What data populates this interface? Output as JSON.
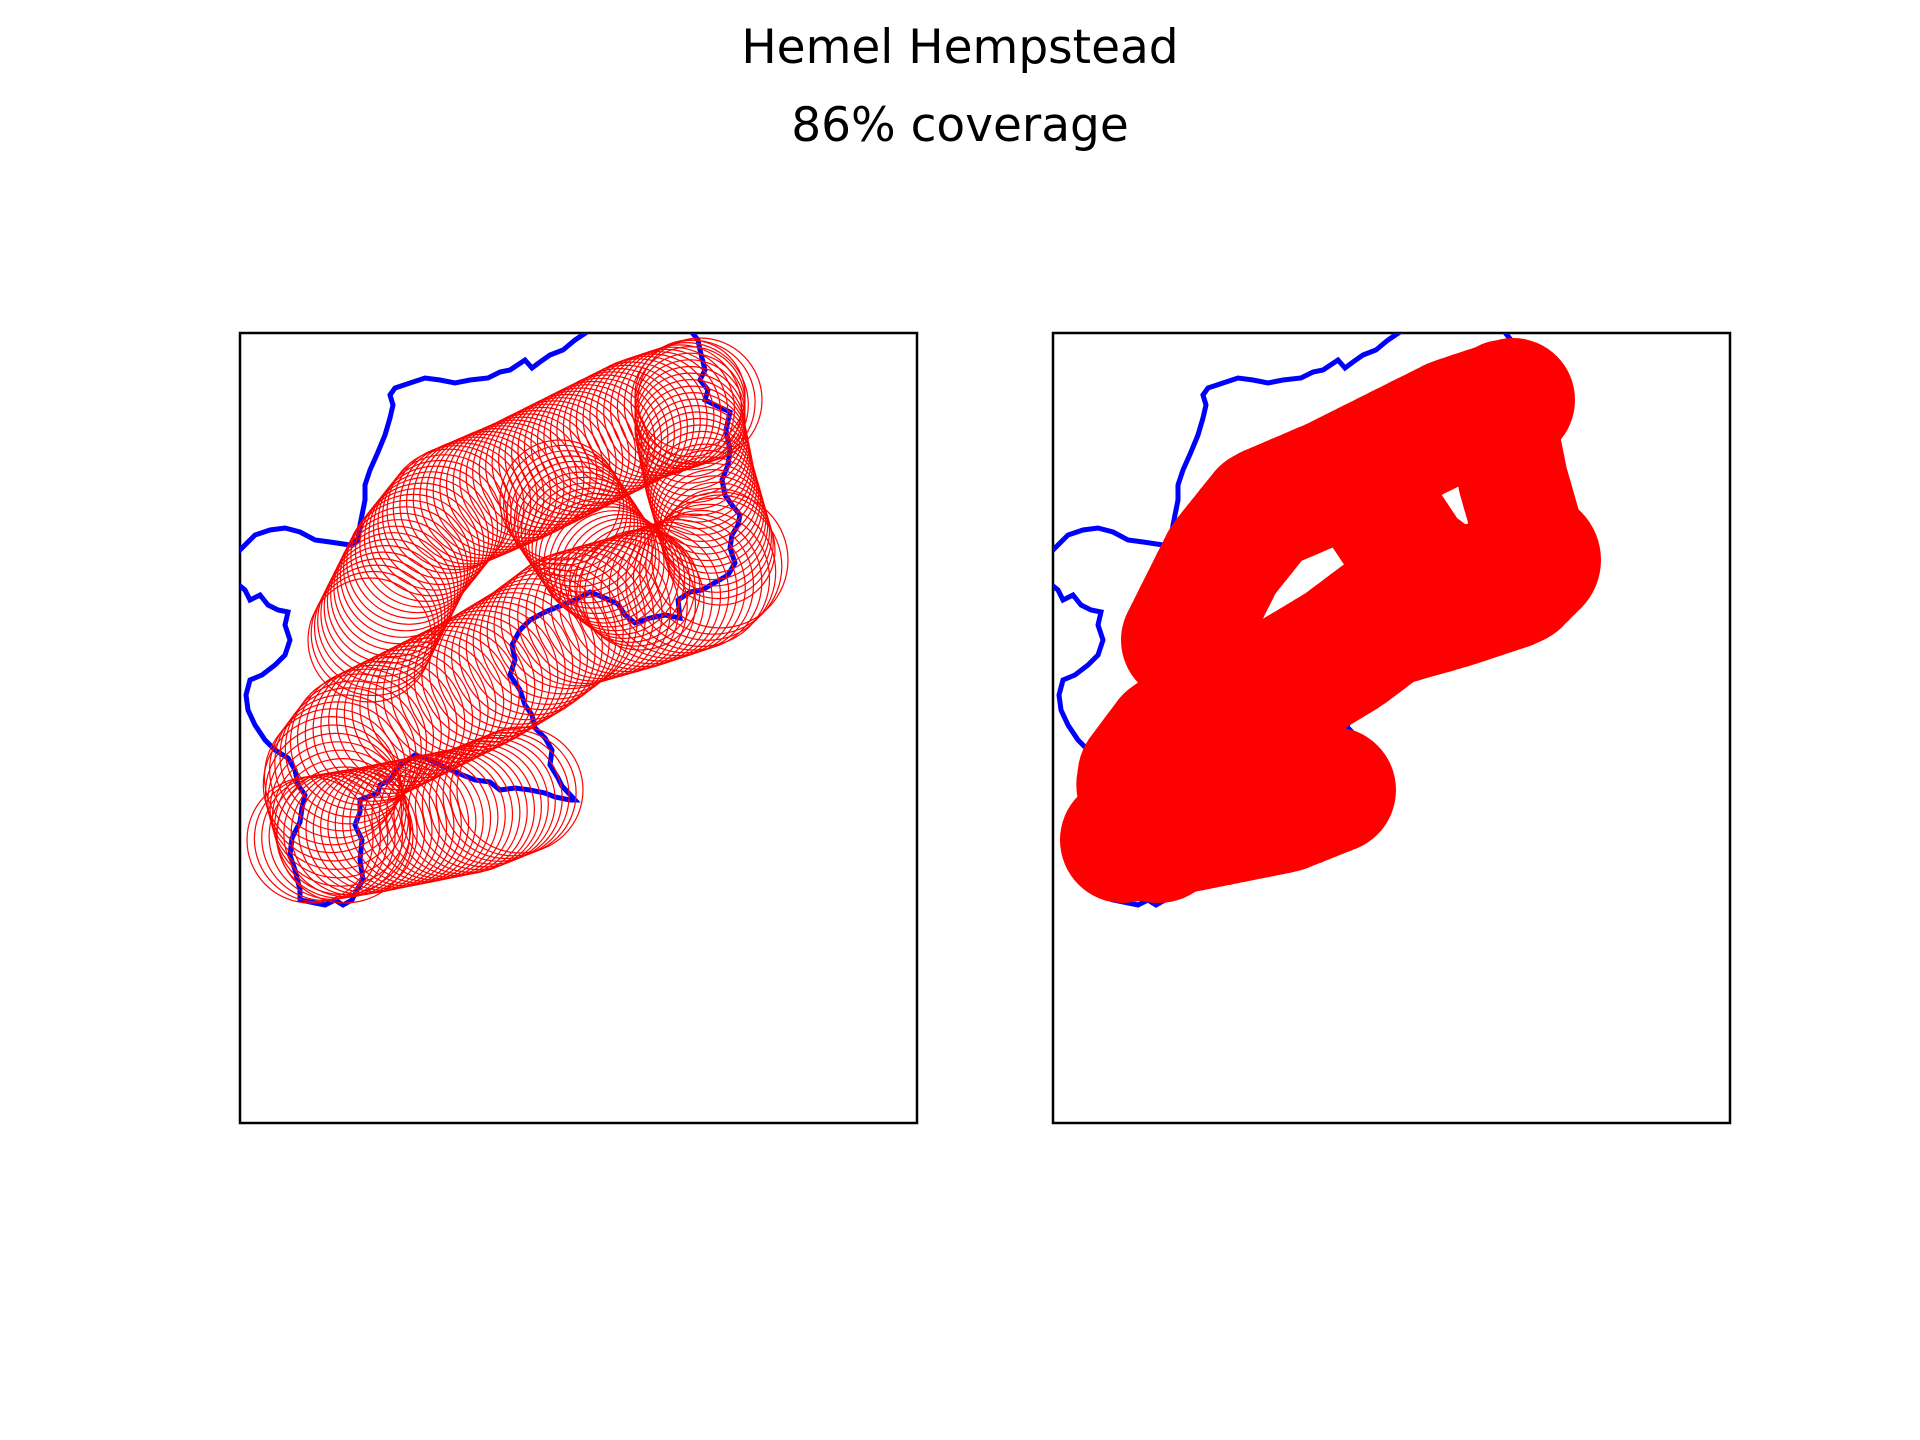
{
  "title": "Hemel Hempstead",
  "subtitle": "86% coverage",
  "colors": {
    "boundary": "#0000ff",
    "coverage": "#ff0000",
    "frame": "#000000",
    "background": "#ffffff"
  },
  "panels": [
    {
      "name": "outline-circles",
      "style": "circle-outlines"
    },
    {
      "name": "filled-coverage",
      "style": "filled-circles"
    }
  ],
  "coverage_percent": 86
}
